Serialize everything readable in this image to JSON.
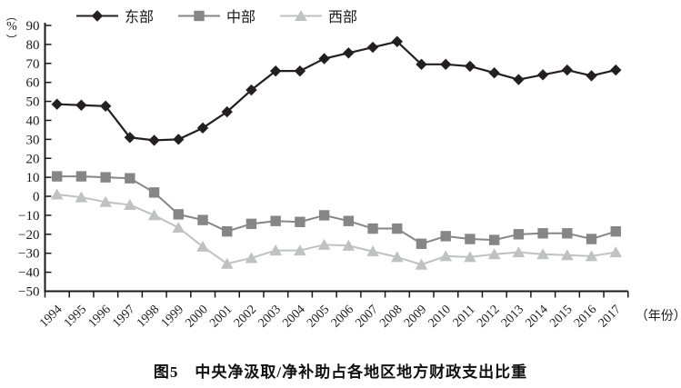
{
  "figure": {
    "caption": "图5　中央净汲取/净补助占各地区地方财政支出比重"
  },
  "axis": {
    "y_unit_open": "（",
    "y_unit_symbol": "%",
    "y_unit_close": "）",
    "x_unit": "（年份）"
  },
  "chart_data": {
    "type": "line",
    "title": "图5 中央净汲取/净补助占各地区地方财政支出比重",
    "xlabel": "（年份）",
    "ylabel": "（%）",
    "ylim": [
      -50,
      90
    ],
    "ytick_step": 10,
    "grid": false,
    "legend_position": "top",
    "x": [
      1994,
      1995,
      1996,
      1997,
      1998,
      1999,
      2000,
      2001,
      2002,
      2003,
      2004,
      2005,
      2006,
      2007,
      2008,
      2009,
      2010,
      2011,
      2012,
      2013,
      2014,
      2015,
      2016,
      2017
    ],
    "series": [
      {
        "id": "east",
        "name": "东部",
        "marker": "diamond",
        "color": "#231f20",
        "values": [
          48.5,
          48,
          47.5,
          31,
          29.5,
          30,
          36,
          44.5,
          56,
          66,
          66,
          72.5,
          75.5,
          78.5,
          81.5,
          69.5,
          69.5,
          68.5,
          65,
          61.5,
          64,
          66.5,
          63.5,
          66.5
        ]
      },
      {
        "id": "central",
        "name": "中部",
        "marker": "square",
        "color": "#868686",
        "values": [
          10.5,
          10.5,
          10,
          9.5,
          2,
          -9.5,
          -12.5,
          -18.5,
          -14.5,
          -13,
          -13.5,
          -10,
          -13,
          -17,
          -17,
          -25,
          -21,
          -22.5,
          -23,
          -20,
          -19.5,
          -19.5,
          -22.5,
          -18.5
        ]
      },
      {
        "id": "west",
        "name": "西部",
        "marker": "triangle",
        "color": "#bfc1c2",
        "values": [
          1,
          -0.5,
          -3,
          -4.5,
          -10,
          -16.5,
          -26.5,
          -35.5,
          -32.5,
          -28.5,
          -28.5,
          -25.5,
          -26,
          -29,
          -32,
          -36,
          -31.5,
          -32,
          -30.5,
          -29.5,
          -30.5,
          -31,
          -31.5,
          -29.5
        ]
      }
    ]
  }
}
